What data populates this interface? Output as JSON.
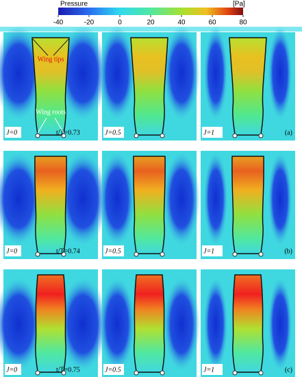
{
  "colorbar": {
    "label": "Pressure",
    "unit": "[Pa]",
    "lim": [
      -40,
      80
    ],
    "ticks": [
      -40,
      -20,
      0,
      20,
      40,
      60,
      80
    ]
  },
  "annotations": {
    "tips": "Wing tips",
    "roots": "Wing roots"
  },
  "columns": [
    "J=0",
    "J=0.5",
    "J=1"
  ],
  "rows": [
    {
      "time": "t/T=0.73",
      "tag": "(a)"
    },
    {
      "time": "t/T=0.74",
      "tag": "(b)"
    },
    {
      "time": "t/T=0.75",
      "tag": "(c)"
    }
  ]
}
